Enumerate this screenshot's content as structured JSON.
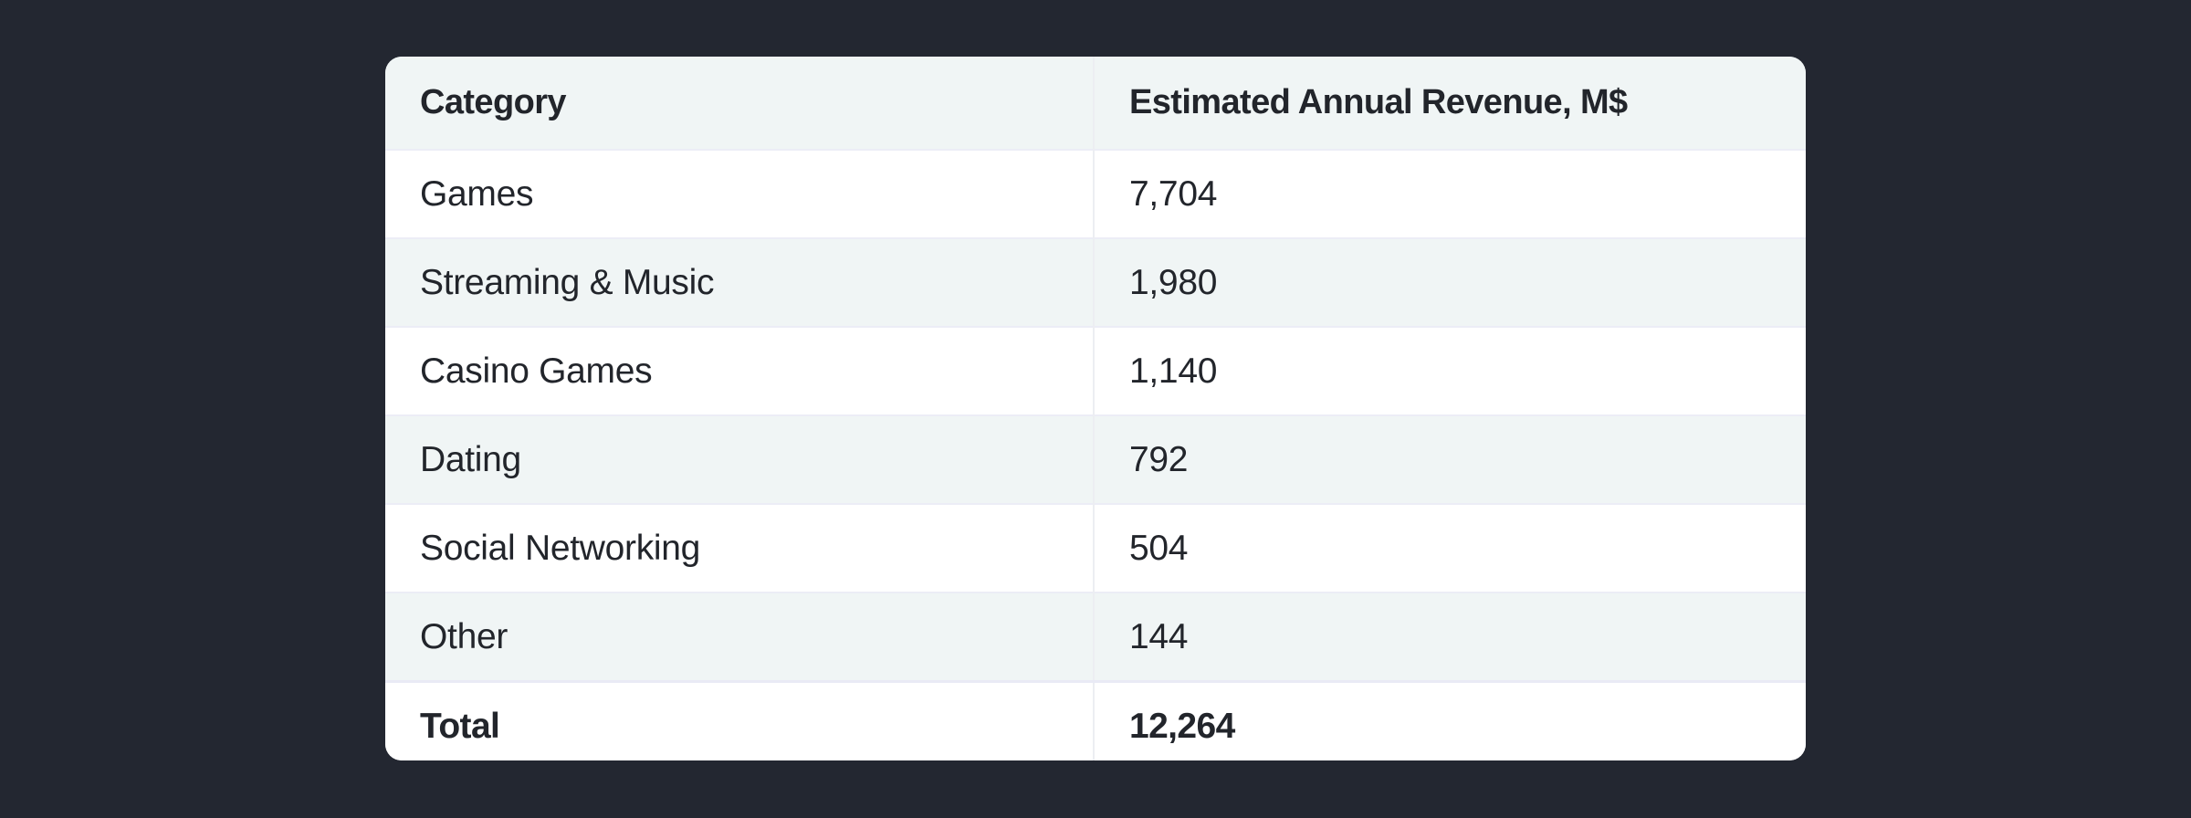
{
  "table": {
    "headers": [
      "Category",
      "Estimated Annual Revenue, M$"
    ],
    "rows": [
      {
        "category": "Games",
        "revenue": "7,704"
      },
      {
        "category": "Streaming & Music",
        "revenue": "1,980"
      },
      {
        "category": "Casino Games",
        "revenue": "1,140"
      },
      {
        "category": "Dating",
        "revenue": "792"
      },
      {
        "category": "Social Networking",
        "revenue": "504"
      },
      {
        "category": "Other",
        "revenue": "144"
      }
    ],
    "total": {
      "category": "Total",
      "revenue": "12,264"
    }
  },
  "colors": {
    "page_background": "#232731",
    "card_background": "#ffffff",
    "stripe_background": "#f0f5f5",
    "text": "#22252b",
    "row_border": "#ecedf6"
  },
  "chart_data": {
    "type": "table",
    "columns": [
      "Category",
      "Estimated Annual Revenue, M$"
    ],
    "rows": [
      [
        "Games",
        7704
      ],
      [
        "Streaming & Music",
        1980
      ],
      [
        "Casino Games",
        1140
      ],
      [
        "Dating",
        792
      ],
      [
        "Social Networking",
        504
      ],
      [
        "Other",
        144
      ],
      [
        "Total",
        12264
      ]
    ]
  }
}
